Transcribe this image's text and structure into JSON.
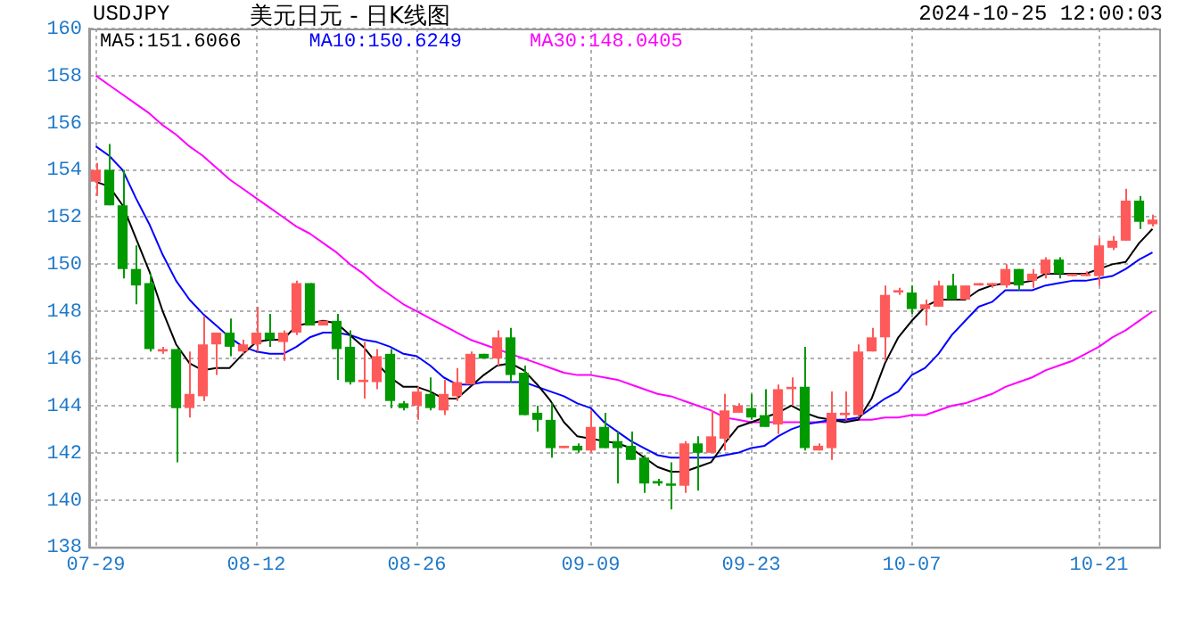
{
  "chart_data": {
    "type": "candlestick",
    "title": "美元日元 - 日K线图",
    "subtitle": "USDJPY",
    "annotations": [
      "2024-10-25 12:00:03"
    ],
    "categories": [
      "07-29",
      null,
      null,
      null,
      null,
      null,
      null,
      null,
      null,
      null,
      null,
      null,
      "08-12",
      null,
      null,
      null,
      null,
      null,
      null,
      null,
      null,
      null,
      null,
      null,
      "08-26",
      null,
      null,
      null,
      null,
      null,
      null,
      null,
      null,
      null,
      null,
      null,
      null,
      "09-09",
      null,
      null,
      null,
      null,
      null,
      null,
      null,
      null,
      null,
      null,
      null,
      "09-23",
      null,
      null,
      null,
      null,
      null,
      null,
      null,
      null,
      null,
      null,
      null,
      "10-07",
      null,
      null,
      null,
      null,
      null,
      null,
      null,
      null,
      null,
      null,
      null,
      null,
      null,
      "10-21",
      null,
      null,
      null,
      null
    ],
    "ohlc": [
      [
        153.5,
        154.3,
        152.9,
        154.0
      ],
      [
        154.0,
        155.1,
        152.5,
        152.5
      ],
      [
        152.5,
        154.0,
        149.4,
        149.8
      ],
      [
        149.8,
        150.8,
        148.3,
        149.1
      ],
      [
        149.2,
        149.6,
        146.3,
        146.4
      ],
      [
        146.3,
        146.5,
        146.2,
        146.4
      ],
      [
        146.4,
        146.4,
        141.6,
        143.9
      ],
      [
        143.9,
        146.3,
        143.5,
        144.5
      ],
      [
        144.4,
        147.8,
        144.2,
        146.6
      ],
      [
        146.6,
        147.1,
        145.3,
        147.1
      ],
      [
        147.1,
        147.7,
        146.1,
        146.5
      ],
      [
        146.3,
        146.8,
        146.2,
        146.6
      ],
      [
        146.6,
        148.2,
        146.3,
        147.1
      ],
      [
        147.1,
        147.9,
        146.5,
        146.8
      ],
      [
        146.7,
        147.2,
        145.9,
        147.1
      ],
      [
        147.1,
        149.3,
        147.0,
        149.2
      ],
      [
        149.2,
        149.2,
        147.4,
        147.4
      ],
      [
        147.4,
        147.6,
        147.4,
        147.6
      ],
      [
        147.6,
        147.9,
        145.1,
        146.4
      ],
      [
        146.5,
        147.2,
        144.9,
        145.0
      ],
      [
        145.0,
        146.7,
        144.3,
        145.1
      ],
      [
        145.0,
        146.4,
        144.7,
        146.1
      ],
      [
        146.2,
        146.4,
        143.9,
        144.2
      ],
      [
        144.1,
        144.2,
        143.8,
        143.9
      ],
      [
        144.0,
        144.8,
        143.4,
        144.6
      ],
      [
        144.5,
        145.2,
        143.8,
        143.9
      ],
      [
        143.8,
        145.1,
        143.6,
        144.5
      ],
      [
        144.4,
        145.6,
        144.2,
        145.0
      ],
      [
        144.9,
        146.3,
        144.9,
        146.2
      ],
      [
        146.2,
        146.2,
        146.0,
        146.0
      ],
      [
        146.0,
        147.2,
        145.7,
        146.9
      ],
      [
        146.9,
        147.3,
        145.0,
        145.3
      ],
      [
        145.4,
        145.7,
        143.6,
        143.6
      ],
      [
        143.7,
        144.0,
        142.9,
        143.4
      ],
      [
        143.4,
        144.1,
        141.8,
        142.2
      ],
      [
        142.2,
        142.3,
        142.2,
        142.3
      ],
      [
        142.3,
        142.4,
        142.0,
        142.1
      ],
      [
        142.1,
        143.8,
        142.0,
        143.1
      ],
      [
        143.1,
        143.7,
        142.2,
        142.2
      ],
      [
        142.5,
        142.9,
        140.7,
        142.2
      ],
      [
        142.3,
        142.9,
        141.7,
        141.7
      ],
      [
        141.8,
        141.9,
        140.3,
        140.7
      ],
      [
        140.8,
        140.9,
        140.6,
        140.7
      ],
      [
        140.7,
        141.6,
        139.6,
        140.6
      ],
      [
        140.6,
        142.5,
        140.3,
        142.4
      ],
      [
        142.4,
        142.7,
        140.4,
        142.0
      ],
      [
        142.0,
        143.8,
        142.0,
        142.7
      ],
      [
        142.6,
        144.5,
        142.1,
        143.8
      ],
      [
        143.7,
        144.1,
        143.7,
        144.0
      ],
      [
        143.9,
        144.5,
        143.4,
        143.5
      ],
      [
        143.6,
        144.7,
        143.1,
        143.1
      ],
      [
        143.2,
        144.9,
        142.8,
        144.7
      ],
      [
        144.7,
        145.2,
        144.0,
        144.8
      ],
      [
        144.8,
        146.5,
        142.1,
        142.2
      ],
      [
        142.1,
        142.4,
        142.1,
        142.3
      ],
      [
        142.2,
        144.6,
        141.7,
        143.7
      ],
      [
        143.6,
        144.6,
        143.4,
        143.7
      ],
      [
        143.6,
        146.6,
        143.5,
        146.3
      ],
      [
        146.3,
        147.3,
        146.3,
        146.9
      ],
      [
        146.9,
        149.1,
        145.9,
        148.7
      ],
      [
        148.8,
        149.0,
        148.7,
        148.9
      ],
      [
        148.8,
        149.1,
        147.9,
        148.1
      ],
      [
        148.1,
        148.5,
        147.4,
        148.3
      ],
      [
        148.2,
        149.3,
        148.2,
        149.1
      ],
      [
        149.1,
        149.6,
        148.5,
        148.5
      ],
      [
        148.5,
        149.1,
        148.5,
        149.1
      ],
      [
        149.1,
        149.2,
        149.1,
        149.2
      ],
      [
        149.1,
        149.2,
        149.0,
        149.2
      ],
      [
        149.1,
        150.0,
        149.0,
        149.8
      ],
      [
        149.8,
        149.8,
        148.9,
        149.1
      ],
      [
        149.3,
        149.8,
        149.0,
        149.6
      ],
      [
        149.6,
        150.3,
        149.4,
        150.2
      ],
      [
        150.2,
        150.3,
        149.4,
        149.6
      ],
      [
        149.5,
        149.6,
        149.5,
        149.6
      ],
      [
        149.5,
        149.7,
        149.5,
        149.6
      ],
      [
        149.5,
        151.1,
        149.1,
        150.8
      ],
      [
        150.7,
        151.2,
        150.6,
        151.0
      ],
      [
        151.0,
        153.2,
        151.0,
        152.7
      ],
      [
        152.7,
        152.9,
        151.5,
        151.8
      ],
      [
        151.7,
        152.1,
        151.6,
        151.9
      ]
    ],
    "colors": [
      "#ff5a5a",
      "#009900",
      "#009900",
      "#009900",
      "#009900",
      "#ff5a5a",
      "#009900",
      "#ff5a5a",
      "#ff5a5a",
      "#ff5a5a",
      "#009900",
      "#ff5a5a",
      "#ff5a5a",
      "#009900",
      "#ff5a5a",
      "#ff5a5a",
      "#009900",
      "#ff5a5a",
      "#009900",
      "#009900",
      "#ff5a5a",
      "#ff5a5a",
      "#009900",
      "#009900",
      "#ff5a5a",
      "#009900",
      "#ff5a5a",
      "#ff5a5a",
      "#ff5a5a",
      "#009900",
      "#ff5a5a",
      "#009900",
      "#009900",
      "#009900",
      "#009900",
      "#ff5a5a",
      "#009900",
      "#ff5a5a",
      "#009900",
      "#009900",
      "#009900",
      "#009900",
      "#009900",
      "#009900",
      "#ff5a5a",
      "#009900",
      "#ff5a5a",
      "#ff5a5a",
      "#ff5a5a",
      "#009900",
      "#009900",
      "#ff5a5a",
      "#ff5a5a",
      "#009900",
      "#ff5a5a",
      "#ff5a5a",
      "#ff5a5a",
      "#ff5a5a",
      "#ff5a5a",
      "#ff5a5a",
      "#ff5a5a",
      "#009900",
      "#ff5a5a",
      "#ff5a5a",
      "#009900",
      "#ff5a5a",
      "#ff5a5a",
      "#ff5a5a",
      "#ff5a5a",
      "#009900",
      "#ff5a5a",
      "#ff5a5a",
      "#009900",
      "#ff5a5a",
      "#ff5a5a",
      "#ff5a5a",
      "#ff5a5a",
      "#ff5a5a",
      "#009900",
      "#ff5a5a"
    ],
    "series": [
      {
        "type": "line",
        "name": "MA5:151.6066",
        "color": "#000000",
        "values": [
          153.5,
          153.3,
          152.5,
          151.1,
          149.7,
          148.0,
          146.6,
          145.8,
          145.5,
          145.6,
          145.6,
          146.2,
          146.7,
          146.8,
          146.8,
          147.4,
          147.5,
          147.6,
          147.5,
          147.0,
          146.5,
          145.8,
          145.2,
          144.8,
          144.8,
          144.6,
          144.3,
          144.3,
          144.8,
          145.3,
          145.7,
          145.8,
          145.5,
          144.9,
          144.2,
          143.3,
          142.7,
          142.6,
          142.5,
          142.4,
          142.2,
          141.8,
          141.4,
          141.2,
          141.2,
          141.4,
          141.6,
          142.4,
          143.1,
          143.3,
          143.5,
          143.7,
          144.0,
          143.7,
          143.5,
          143.4,
          143.3,
          143.4,
          144.3,
          145.8,
          146.9,
          147.6,
          148.2,
          148.5,
          148.5,
          148.5,
          148.9,
          149.1,
          149.2,
          149.2,
          149.3,
          149.6,
          149.6,
          149.6,
          149.6,
          149.8,
          150.0,
          150.1,
          150.9,
          151.5
        ]
      },
      {
        "type": "line",
        "name": "MA10:150.6249",
        "color": "#0000ff",
        "values": [
          155.0,
          154.6,
          154.0,
          152.8,
          151.7,
          150.4,
          149.3,
          148.5,
          147.9,
          147.4,
          146.9,
          146.5,
          146.3,
          146.2,
          146.2,
          146.5,
          146.9,
          147.1,
          147.1,
          147.0,
          146.8,
          146.7,
          146.5,
          146.2,
          146.1,
          145.7,
          145.2,
          144.9,
          144.9,
          145.0,
          145.0,
          145.0,
          145.0,
          144.8,
          144.6,
          144.4,
          144.1,
          143.9,
          143.3,
          142.9,
          142.5,
          142.2,
          141.9,
          141.8,
          141.8,
          141.8,
          141.8,
          141.9,
          142.0,
          142.2,
          142.3,
          142.7,
          143.0,
          143.2,
          143.3,
          143.4,
          143.4,
          143.5,
          143.9,
          144.3,
          144.6,
          145.3,
          145.6,
          146.2,
          147.0,
          147.6,
          148.2,
          148.4,
          148.9,
          148.9,
          148.9,
          149.1,
          149.2,
          149.3,
          149.3,
          149.4,
          149.5,
          149.8,
          150.2,
          150.5
        ]
      },
      {
        "type": "line",
        "name": "MA30:148.0405",
        "color": "#ff00ff",
        "values": [
          158.0,
          157.6,
          157.2,
          156.8,
          156.4,
          155.9,
          155.5,
          155.0,
          154.6,
          154.1,
          153.6,
          153.2,
          152.8,
          152.4,
          152.0,
          151.6,
          151.3,
          150.9,
          150.5,
          150.0,
          149.6,
          149.1,
          148.7,
          148.3,
          148.0,
          147.7,
          147.4,
          147.1,
          146.8,
          146.6,
          146.4,
          146.2,
          146.0,
          145.8,
          145.6,
          145.4,
          145.3,
          145.3,
          145.2,
          145.1,
          144.9,
          144.7,
          144.5,
          144.4,
          144.2,
          144.0,
          143.8,
          143.5,
          143.4,
          143.3,
          143.3,
          143.3,
          143.3,
          143.3,
          143.3,
          143.3,
          143.4,
          143.4,
          143.4,
          143.5,
          143.5,
          143.6,
          143.6,
          143.8,
          144.0,
          144.1,
          144.3,
          144.5,
          144.8,
          145.0,
          145.2,
          145.5,
          145.7,
          145.9,
          146.2,
          146.5,
          146.9,
          147.2,
          147.6,
          148.0
        ]
      }
    ],
    "ylim": [
      138,
      160
    ],
    "yticks": [
      138,
      140,
      142,
      144,
      146,
      148,
      150,
      152,
      154,
      156,
      158,
      160
    ],
    "grid": true,
    "legend": "top left"
  }
}
